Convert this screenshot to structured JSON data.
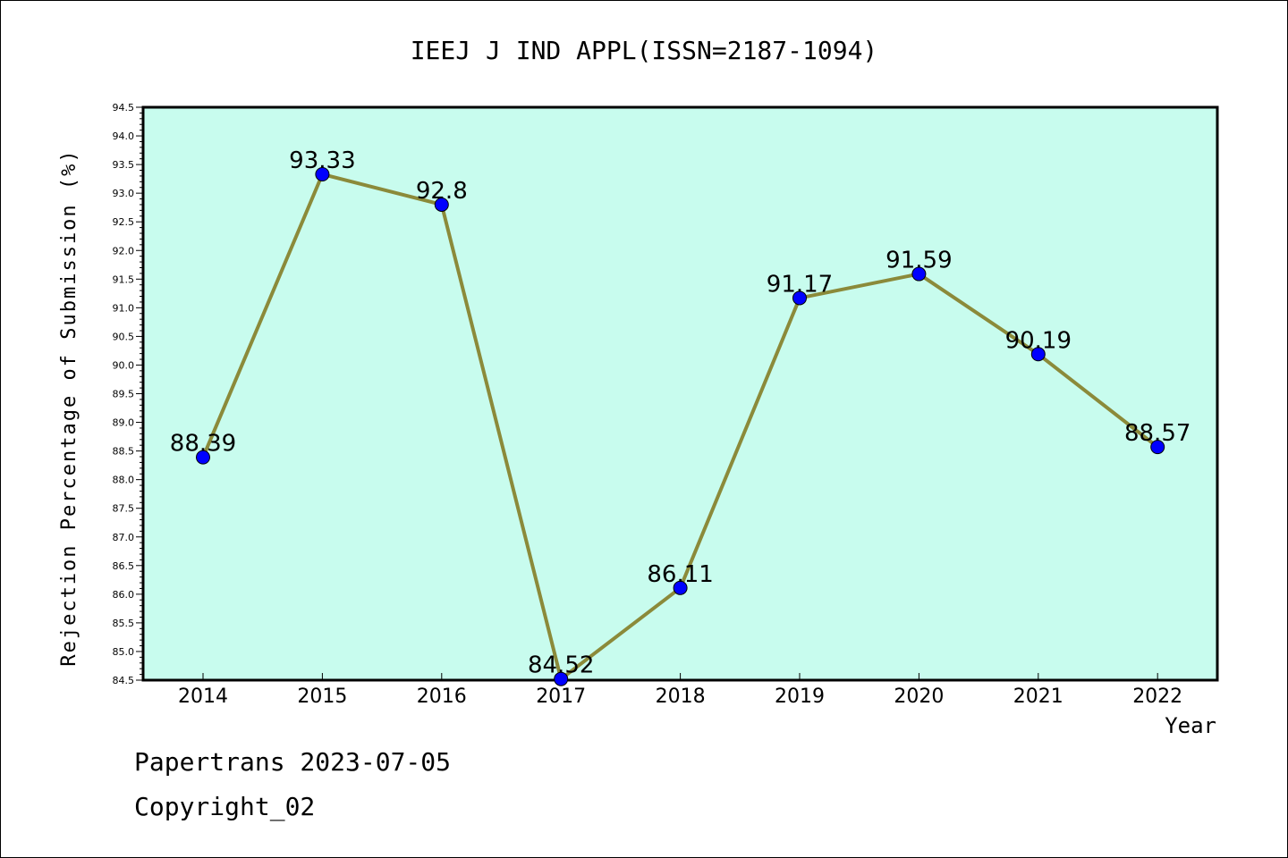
{
  "chart_data": {
    "type": "line",
    "title": "IEEJ J IND APPL(ISSN=2187-1094)",
    "xlabel": "Year",
    "ylabel": "Rejection Percentage of Submission (%)",
    "categories": [
      "2014",
      "2015",
      "2016",
      "2017",
      "2018",
      "2019",
      "2020",
      "2021",
      "2022"
    ],
    "values": [
      88.39,
      93.33,
      92.8,
      84.52,
      86.11,
      91.17,
      91.59,
      90.19,
      88.57
    ],
    "data_labels": [
      "88.39",
      "93.33",
      "92.8",
      "84.52",
      "86.11",
      "91.17",
      "91.59",
      "90.19",
      "88.57"
    ],
    "yticks": [
      "84.5",
      "85.0",
      "85.5",
      "86.0",
      "86.5",
      "87.0",
      "87.5",
      "88.0",
      "88.5",
      "89.0",
      "89.5",
      "90.0",
      "90.5",
      "91.0",
      "91.5",
      "92.0",
      "92.5",
      "93.0",
      "93.5",
      "94.0",
      "94.5"
    ],
    "ylim": [
      84.5,
      94.5
    ],
    "grid": false,
    "colors": {
      "plot_background": "#c8fcee",
      "line": "#8b8a3a",
      "marker": "#0000ff"
    }
  },
  "footer": {
    "line1": "Papertrans 2023-07-05",
    "line2": "Copyright_02"
  }
}
